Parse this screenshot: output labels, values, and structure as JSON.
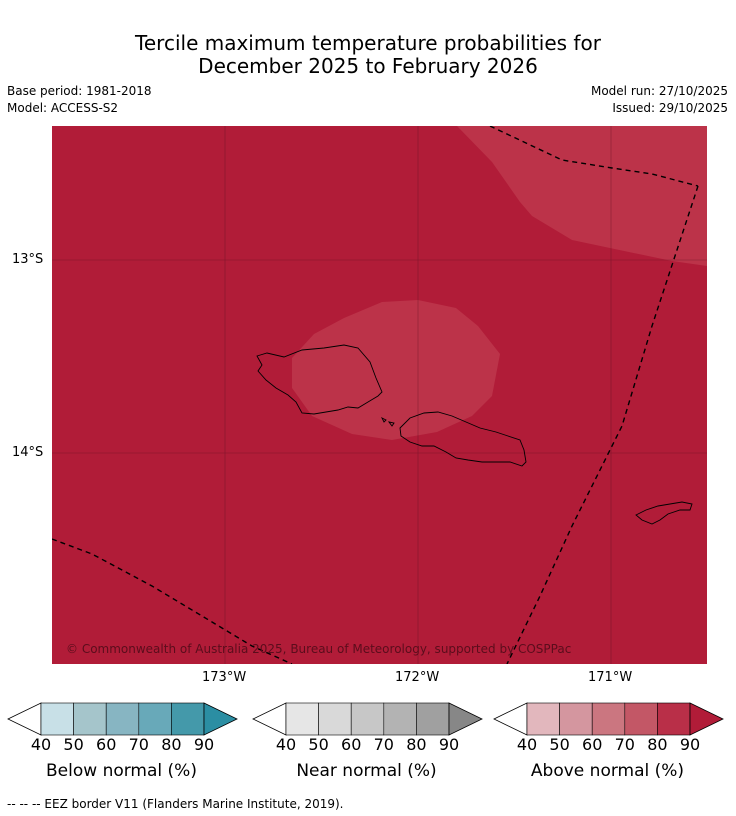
{
  "title": {
    "line1": "Tercile maximum temperature probabilities for",
    "line2": "December 2025 to February 2026"
  },
  "meta": {
    "base_period": "Base period: 1981-2018",
    "model": "Model: ACCESS-S2",
    "model_run": "Model run: 27/10/2025",
    "issued": "Issued: 29/10/2025"
  },
  "map": {
    "lat_labels": [
      "13°S",
      "14°S"
    ],
    "lon_labels": [
      "173°W",
      "172°W",
      "171°W"
    ],
    "copyright": "© Commonwealth of Australia 2025, Bureau of Meteorology, supported by COSPPac",
    "colors": {
      "base": "#b11c38",
      "lighter": "#bc3349",
      "coast": "#000000",
      "eez": "#000000"
    }
  },
  "colorbars": [
    {
      "name": "below",
      "label": "Below normal (%)",
      "ticks": [
        "40",
        "50",
        "60",
        "70",
        "80",
        "90"
      ],
      "colors": [
        "#c8e0e7",
        "#a5c5cb",
        "#87b5c2",
        "#68a9b9",
        "#4499aa",
        "#2b8ea3"
      ]
    },
    {
      "name": "near",
      "label": "Near normal (%)",
      "ticks": [
        "40",
        "50",
        "60",
        "70",
        "80",
        "90"
      ],
      "colors": [
        "#e6e6e6",
        "#d9d9d9",
        "#c7c7c7",
        "#b3b3b3",
        "#a0a0a0",
        "#878787"
      ]
    },
    {
      "name": "above",
      "label": "Above normal (%)",
      "ticks": [
        "40",
        "50",
        "60",
        "70",
        "80",
        "90"
      ],
      "colors": [
        "#e2b7bd",
        "#d4969f",
        "#cb7680",
        "#c35766",
        "#b92f48",
        "#b11c38"
      ]
    }
  ],
  "footer": "-- -- -- EEZ border V11 (Flanders Marine Institute, 2019)."
}
